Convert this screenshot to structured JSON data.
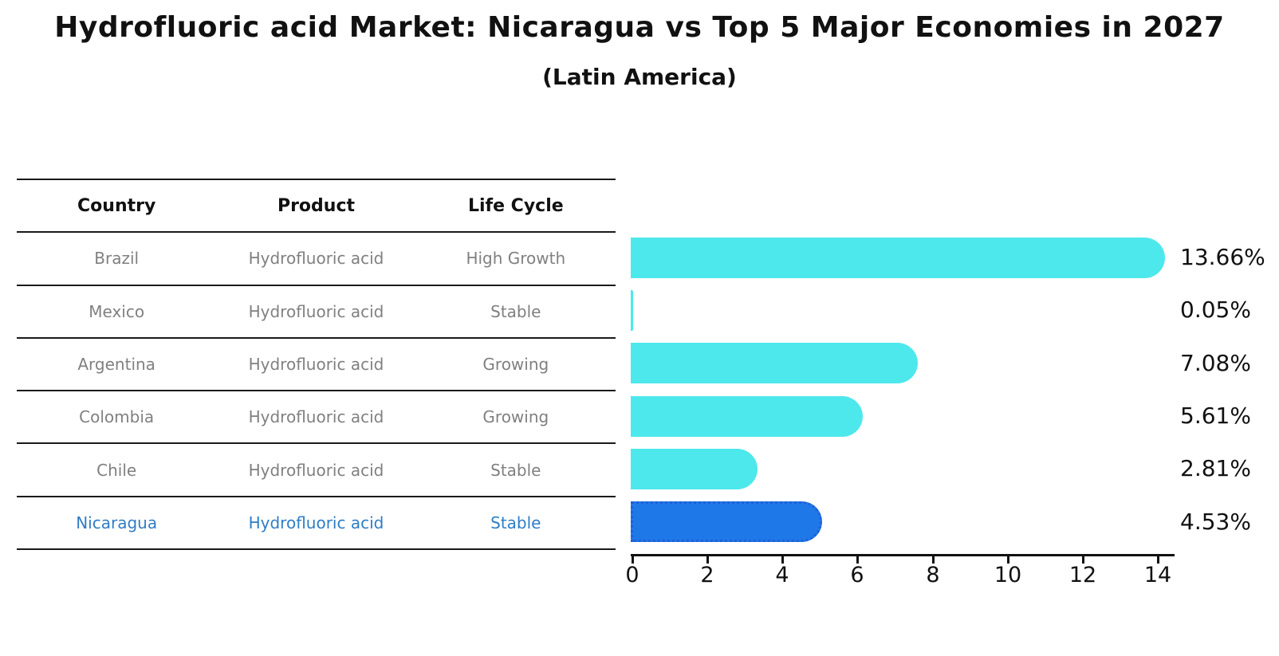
{
  "title": "Hydrofluoric acid Market: Nicaragua vs Top 5 Major Economies in 2027",
  "subtitle": "(Latin America)",
  "table": {
    "columns": [
      "Country",
      "Product",
      "Life Cycle"
    ],
    "rows": [
      {
        "country": "Brazil",
        "product": "Hydrofluoric acid",
        "life_cycle": "High Growth"
      },
      {
        "country": "Mexico",
        "product": "Hydrofluoric acid",
        "life_cycle": "Stable"
      },
      {
        "country": "Argentina",
        "product": "Hydrofluoric acid",
        "life_cycle": "Growing"
      },
      {
        "country": "Colombia",
        "product": "Hydrofluoric acid",
        "life_cycle": "Growing"
      },
      {
        "country": "Chile",
        "product": "Hydrofluoric acid",
        "life_cycle": "Stable"
      },
      {
        "country": "Nicaragua",
        "product": "Hydrofluoric acid",
        "life_cycle": "Stable"
      }
    ]
  },
  "chart_data": {
    "type": "bar",
    "orientation": "horizontal",
    "title": "Hydrofluoric acid Market: Nicaragua vs Top 5 Major Economies in 2027",
    "subtitle": "(Latin America)",
    "categories": [
      "Brazil",
      "Mexico",
      "Argentina",
      "Colombia",
      "Chile",
      "Nicaragua"
    ],
    "values": [
      13.66,
      0.05,
      7.08,
      5.61,
      2.81,
      4.53
    ],
    "value_labels": [
      "13.66%",
      "0.05%",
      "7.08%",
      "5.61%",
      "2.81%",
      "4.53%"
    ],
    "xlim": [
      0,
      14
    ],
    "xticks": [
      "0",
      "2",
      "4",
      "6",
      "8",
      "10",
      "12",
      "14"
    ],
    "highlight_index": 5,
    "grid": false,
    "legend": false,
    "colors": {
      "bar": "#4DE8EC",
      "highlight_bar": "#1E78E8",
      "highlight_border": "#2060D8",
      "highlight_text": "#2E7DC6",
      "row_text": "#808080",
      "axis_text": "#111111"
    }
  }
}
